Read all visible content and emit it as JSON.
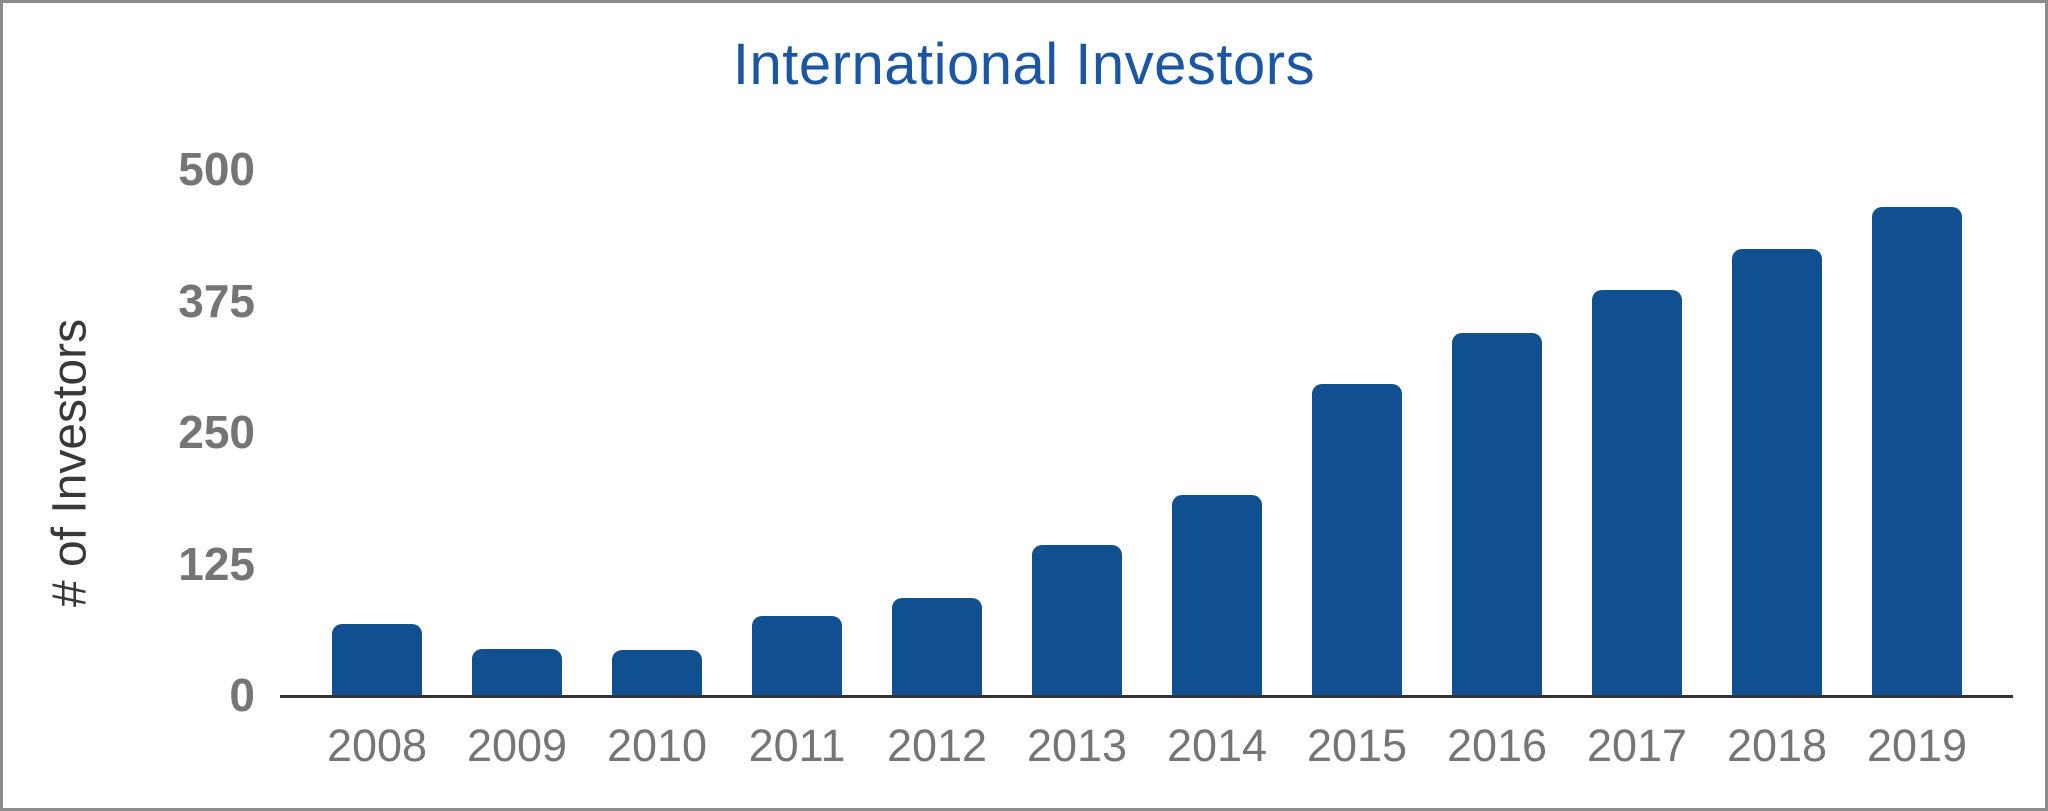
{
  "chart_data": {
    "type": "bar",
    "title": "International Investors",
    "xlabel": "",
    "ylabel": "# of Investors",
    "categories": [
      "2008",
      "2009",
      "2010",
      "2011",
      "2012",
      "2013",
      "2014",
      "2015",
      "2016",
      "2017",
      "2018",
      "2019"
    ],
    "values": [
      68,
      44,
      43,
      75,
      92,
      143,
      190,
      296,
      344,
      385,
      424,
      464
    ],
    "yticks": [
      0,
      125,
      250,
      375,
      500
    ],
    "ylim": [
      0,
      500
    ],
    "grid": false,
    "legend": false
  },
  "colors": {
    "bar": "#115090",
    "title": "#1b56a4",
    "tick_label": "#757575",
    "axis_title": "#383838",
    "axis_line": "#333333",
    "frame_border": "#8c8c8c",
    "background": "#ffffff"
  }
}
